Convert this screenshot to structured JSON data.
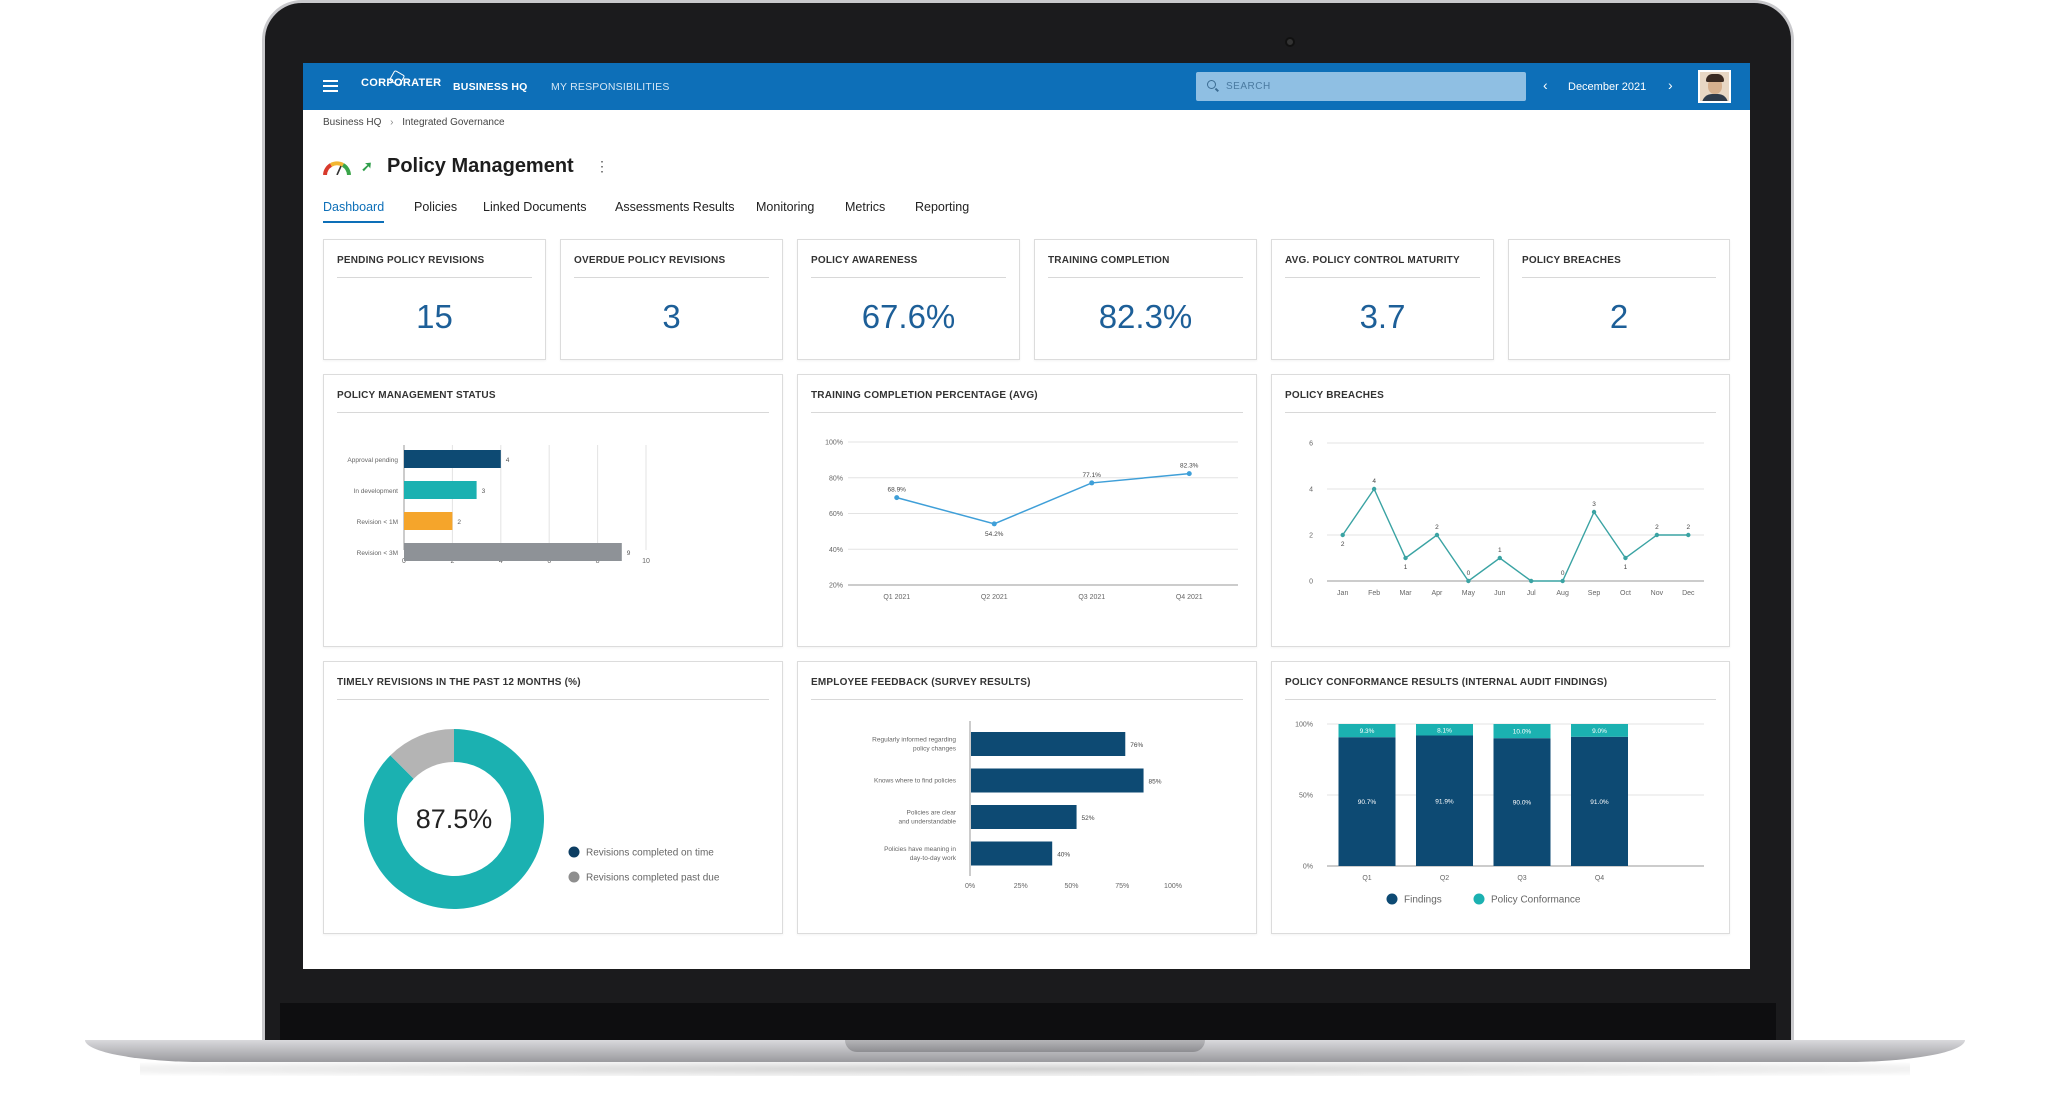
{
  "app": {
    "logo": "CORPORATER",
    "nav": [
      "BUSINESS HQ",
      "MY RESPONSIBILITIES"
    ],
    "search_placeholder": "SEARCH",
    "period": "December 2021",
    "brand_color": "#0d6fb8"
  },
  "breadcrumb": [
    "Business HQ",
    "Integrated Governance"
  ],
  "page": {
    "title": "Policy Management"
  },
  "tabs": [
    "Dashboard",
    "Policies",
    "Linked Documents",
    "Assessments Results",
    "Monitoring",
    "Metrics",
    "Reporting"
  ],
  "active_tab": "Dashboard",
  "kpis": [
    {
      "label": "PENDING POLICY REVISIONS",
      "value": "15"
    },
    {
      "label": "OVERDUE POLICY REVISIONS",
      "value": "3"
    },
    {
      "label": "POLICY AWARENESS",
      "value": "67.6%"
    },
    {
      "label": "TRAINING COMPLETION",
      "value": "82.3%"
    },
    {
      "label": "AVG. POLICY CONTROL MATURITY",
      "value": "3.7"
    },
    {
      "label": "POLICY BREACHES",
      "value": "2"
    }
  ],
  "cards": {
    "status": "POLICY MANAGEMENT STATUS",
    "training": "TRAINING COMPLETION PERCENTAGE (AVG)",
    "breaches": "POLICY BREACHES",
    "timely": "TIMELY REVISIONS IN THE PAST 12 MONTHS (%)",
    "feedback": "EMPLOYEE FEEDBACK (SURVEY RESULTS)",
    "conformance": "POLICY CONFORMANCE RESULTS (INTERNAL AUDIT FINDINGS)"
  },
  "chart_data": [
    {
      "id": "status",
      "type": "bar",
      "orientation": "horizontal",
      "categories": [
        "Approval pending",
        "In development",
        "Revision < 1M",
        "Revision < 3M"
      ],
      "values": [
        4,
        3,
        2,
        9
      ],
      "colors": [
        "#0d4a73",
        "#1bb1b1",
        "#f5a52b",
        "#8e9297"
      ],
      "xlim": [
        0,
        10
      ],
      "xticks": [
        "0",
        "2",
        "4",
        "6",
        "8",
        "10"
      ],
      "grid": true
    },
    {
      "id": "training",
      "type": "line",
      "categories": [
        "Q1 2021",
        "Q2 2021",
        "Q3 2021",
        "Q4 2021"
      ],
      "values": [
        68.9,
        54.2,
        77.1,
        82.3
      ],
      "labels": [
        "68.9%",
        "54.2%",
        "77.1%",
        "82.3%"
      ],
      "ylim": [
        20,
        100
      ],
      "yticks": [
        100,
        80,
        60,
        40,
        20
      ],
      "ytick_labels": [
        "100%",
        "80%",
        "60%",
        "40%",
        "20%"
      ],
      "color": "#3f9fd8",
      "grid": true
    },
    {
      "id": "breaches",
      "type": "line",
      "categories": [
        "Jan",
        "Feb",
        "Mar",
        "Apr",
        "May",
        "Jun",
        "Jul",
        "Aug",
        "Sep",
        "Oct",
        "Nov",
        "Dec"
      ],
      "values": [
        2,
        4,
        1,
        2,
        0,
        1,
        0,
        0,
        3,
        1,
        2,
        2
      ],
      "labels": [
        "2",
        "4",
        "1",
        "2",
        "0",
        "1",
        "",
        "0",
        "3",
        "1",
        "2",
        "2"
      ],
      "ylim": [
        0,
        6
      ],
      "yticks": [
        6,
        4,
        2,
        0
      ],
      "ytick_labels": [
        "6",
        "4",
        "2",
        "0"
      ],
      "color": "#3aa3a3",
      "grid": true
    },
    {
      "id": "timely",
      "type": "pie",
      "donut": true,
      "center_label": "87.5%",
      "slices": [
        {
          "name": "Revisions completed on time",
          "value": 87.5,
          "color": "#1bb1b1"
        },
        {
          "name": "Revisions completed past due",
          "value": 12.5,
          "color": "#b4b4b4"
        }
      ],
      "legend_dot_colors": [
        "#0d3e63",
        "#8e8e8e"
      ]
    },
    {
      "id": "feedback",
      "type": "bar",
      "orientation": "horizontal",
      "categories": [
        [
          "Regularly informed regarding",
          "policy changes"
        ],
        [
          "Knows where to find policies"
        ],
        [
          "Policies are clear",
          "and understandable"
        ],
        [
          "Policies have meaning in",
          "day-to-day work"
        ]
      ],
      "values": [
        76,
        85,
        52,
        40
      ],
      "labels": [
        "76%",
        "85%",
        "52%",
        "40%"
      ],
      "xlim": [
        0,
        100
      ],
      "xticks": [
        "0%",
        "25%",
        "50%",
        "75%",
        "100%"
      ],
      "color": "#0d4a73"
    },
    {
      "id": "conformance",
      "type": "bar",
      "stacked": true,
      "categories": [
        "Q1",
        "Q2",
        "Q3",
        "Q4"
      ],
      "series": [
        {
          "name": "Findings",
          "values": [
            90.7,
            91.9,
            90.0,
            91.0
          ],
          "labels": [
            "90.7%",
            "91.9%",
            "90.0%",
            "91.0%"
          ],
          "color": "#0d4a73"
        },
        {
          "name": "Policy Conformance",
          "values": [
            9.3,
            8.1,
            10.0,
            9.0
          ],
          "labels": [
            "9.3%",
            "8.1%",
            "10.0%",
            "9.0%"
          ],
          "color": "#1bb1b1"
        }
      ],
      "ylim": [
        0,
        100
      ],
      "yticks": [
        100,
        50,
        0
      ],
      "ytick_labels": [
        "100%",
        "50%",
        "0%"
      ]
    }
  ]
}
